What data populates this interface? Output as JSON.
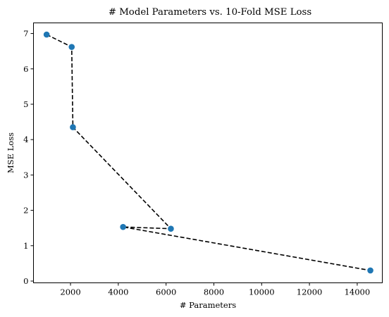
{
  "chart_data": {
    "type": "scatter",
    "title": "# Model Parameters vs. 10-Fold MSE Loss",
    "xlabel": "# Parameters",
    "ylabel": "MSE Loss",
    "xlim": [
      450,
      15050
    ],
    "ylim": [
      -0.05,
      7.3
    ],
    "xticks": [
      2000,
      4000,
      6000,
      8000,
      10000,
      12000,
      14000
    ],
    "yticks": [
      0,
      1,
      2,
      3,
      4,
      5,
      6,
      7
    ],
    "grid": false,
    "legend": "none",
    "point_color": "#1f77b4",
    "line_color": "#000000",
    "line_style": "dashed",
    "points": [
      {
        "x": 1000,
        "y": 6.97
      },
      {
        "x": 2050,
        "y": 6.62
      },
      {
        "x": 2100,
        "y": 4.35
      },
      {
        "x": 6200,
        "y": 1.48
      },
      {
        "x": 4200,
        "y": 1.53
      },
      {
        "x": 14550,
        "y": 0.3
      }
    ]
  }
}
